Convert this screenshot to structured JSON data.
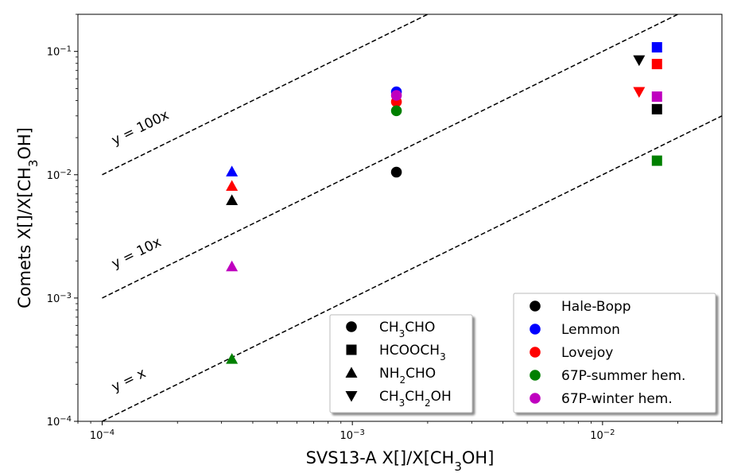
{
  "chart_data": {
    "type": "scatter",
    "xscale": "log",
    "yscale": "log",
    "xlabel": "SVS13-A X[]/X[CH₃OH]",
    "ylabel": "Comets X[]/X[CH₃OH]",
    "xlim": [
      8e-05,
      0.03
    ],
    "ylim": [
      0.0001,
      0.2
    ],
    "x_ticks": [
      {
        "value": 0.0001,
        "base": "10",
        "exp": "−4"
      },
      {
        "value": 0.001,
        "base": "10",
        "exp": "−3"
      },
      {
        "value": 0.01,
        "base": "10",
        "exp": "−2"
      }
    ],
    "y_ticks": [
      {
        "value": 0.0001,
        "base": "10",
        "exp": "−4"
      },
      {
        "value": 0.001,
        "base": "10",
        "exp": "−3"
      },
      {
        "value": 0.01,
        "base": "10",
        "exp": "−2"
      },
      {
        "value": 0.1,
        "base": "10",
        "exp": "−1"
      }
    ],
    "reference_lines": [
      {
        "label": "y = 100x",
        "factor": 100
      },
      {
        "label": "y = 10x",
        "factor": 10
      },
      {
        "label": "y = x",
        "factor": 1
      }
    ],
    "molecules": [
      {
        "name": "CH3CHO",
        "label_parts": [
          "CH",
          "3",
          "CHO"
        ],
        "marker": "circle"
      },
      {
        "name": "HCOOCH3",
        "label_parts": [
          "HCOOCH",
          "3",
          ""
        ],
        "marker": "square"
      },
      {
        "name": "NH2CHO",
        "label_parts": [
          "NH",
          "2",
          "CHO"
        ],
        "marker": "triangle-up"
      },
      {
        "name": "CH3CH2OH",
        "label_parts": [
          "CH",
          "3",
          "CH",
          "2",
          "OH"
        ],
        "marker": "triangle-down"
      }
    ],
    "comets": [
      {
        "name": "Hale-Bopp",
        "color": "#000000"
      },
      {
        "name": "Lemmon",
        "color": "#0000ff"
      },
      {
        "name": "Lovejoy",
        "color": "#ff0000"
      },
      {
        "name": "67P-summer hem.",
        "color": "#008000"
      },
      {
        "name": "67P-winter hem.",
        "color": "#bf00bf"
      }
    ],
    "points": [
      {
        "molecule": "CH3CHO",
        "comet": "Hale-Bopp",
        "x": 0.0015,
        "y": 0.0105
      },
      {
        "molecule": "CH3CHO",
        "comet": "Lemmon",
        "x": 0.0015,
        "y": 0.047
      },
      {
        "molecule": "CH3CHO",
        "comet": "Lovejoy",
        "x": 0.0015,
        "y": 0.039
      },
      {
        "molecule": "CH3CHO",
        "comet": "67P-summer hem.",
        "x": 0.0015,
        "y": 0.033
      },
      {
        "molecule": "CH3CHO",
        "comet": "67P-winter hem.",
        "x": 0.0015,
        "y": 0.044
      },
      {
        "molecule": "HCOOCH3",
        "comet": "Hale-Bopp",
        "x": 0.0165,
        "y": 0.034
      },
      {
        "molecule": "HCOOCH3",
        "comet": "Lemmon",
        "x": 0.0165,
        "y": 0.108
      },
      {
        "molecule": "HCOOCH3",
        "comet": "Lovejoy",
        "x": 0.0165,
        "y": 0.079
      },
      {
        "molecule": "HCOOCH3",
        "comet": "67P-summer hem.",
        "x": 0.0165,
        "y": 0.013
      },
      {
        "molecule": "HCOOCH3",
        "comet": "67P-winter hem.",
        "x": 0.0165,
        "y": 0.043
      },
      {
        "molecule": "NH2CHO",
        "comet": "Hale-Bopp",
        "x": 0.00033,
        "y": 0.0062
      },
      {
        "molecule": "NH2CHO",
        "comet": "Lemmon",
        "x": 0.00033,
        "y": 0.0106
      },
      {
        "molecule": "NH2CHO",
        "comet": "Lovejoy",
        "x": 0.00033,
        "y": 0.0081
      },
      {
        "molecule": "NH2CHO",
        "comet": "67P-summer hem.",
        "x": 0.00033,
        "y": 0.00032
      },
      {
        "molecule": "NH2CHO",
        "comet": "67P-winter hem.",
        "x": 0.00033,
        "y": 0.0018
      },
      {
        "molecule": "CH3CH2OH",
        "comet": "Hale-Bopp",
        "x": 0.014,
        "y": 0.085
      },
      {
        "molecule": "CH3CH2OH",
        "comet": "Lovejoy",
        "x": 0.014,
        "y": 0.047
      }
    ],
    "legend_molecules_position": "lower-center",
    "legend_comets_position": "lower-right",
    "grid": false
  }
}
